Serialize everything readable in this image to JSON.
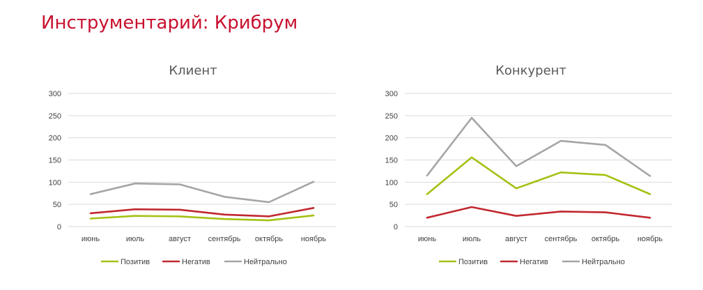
{
  "page_title": "Инструментарий: Крибрум",
  "chart_data": [
    {
      "type": "line",
      "title": "Клиент",
      "categories": [
        "июнь",
        "июль",
        "август",
        "сентябрь",
        "октябрь",
        "ноябрь"
      ],
      "ylim": [
        0,
        300
      ],
      "yticks": [
        0,
        50,
        100,
        150,
        200,
        250,
        300
      ],
      "grid": true,
      "legend": "bottom",
      "series": [
        {
          "name": "Позитив",
          "color": "#a4c113",
          "values": [
            18,
            24,
            23,
            17,
            14,
            25
          ]
        },
        {
          "name": "Негатив",
          "color": "#c1282f",
          "values": [
            30,
            39,
            38,
            27,
            23,
            42
          ]
        },
        {
          "name": "Нейтрально",
          "color": "#a5a5a5",
          "values": [
            73,
            97,
            95,
            67,
            55,
            101
          ]
        }
      ]
    },
    {
      "type": "line",
      "title": "Конкурент",
      "categories": [
        "июнь",
        "июль",
        "август",
        "сентябрь",
        "октябрь",
        "ноябрь"
      ],
      "ylim": [
        0,
        300
      ],
      "yticks": [
        0,
        50,
        100,
        150,
        200,
        250,
        300
      ],
      "grid": true,
      "legend": "bottom",
      "series": [
        {
          "name": "Позитив",
          "color": "#a4c113",
          "values": [
            73,
            156,
            86,
            122,
            116,
            73
          ]
        },
        {
          "name": "Негатив",
          "color": "#c1282f",
          "values": [
            20,
            44,
            24,
            34,
            32,
            20
          ]
        },
        {
          "name": "Нейтрально",
          "color": "#a5a5a5",
          "values": [
            115,
            245,
            136,
            193,
            184,
            114
          ]
        }
      ]
    }
  ]
}
